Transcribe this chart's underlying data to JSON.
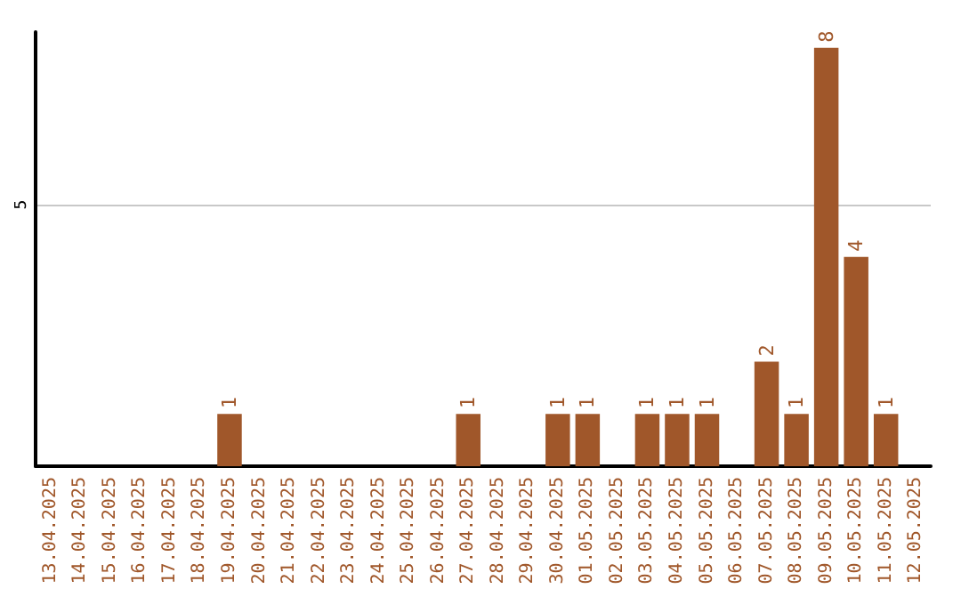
{
  "chart_data": {
    "type": "bar",
    "categories": [
      "13.04.2025",
      "14.04.2025",
      "15.04.2025",
      "16.04.2025",
      "17.04.2025",
      "18.04.2025",
      "19.04.2025",
      "20.04.2025",
      "21.04.2025",
      "22.04.2025",
      "23.04.2025",
      "24.04.2025",
      "25.04.2025",
      "26.04.2025",
      "27.04.2025",
      "28.04.2025",
      "29.04.2025",
      "30.04.2025",
      "01.05.2025",
      "02.05.2025",
      "03.05.2025",
      "04.05.2025",
      "05.05.2025",
      "06.05.2025",
      "07.05.2025",
      "08.05.2025",
      "09.05.2025",
      "10.05.2025",
      "11.05.2025",
      "12.05.2025"
    ],
    "values": [
      0,
      0,
      0,
      0,
      0,
      0,
      1,
      0,
      0,
      0,
      0,
      0,
      0,
      0,
      1,
      0,
      0,
      1,
      1,
      0,
      1,
      1,
      1,
      0,
      2,
      1,
      8,
      4,
      1,
      0
    ],
    "value_labels": [
      null,
      null,
      null,
      null,
      null,
      null,
      "1",
      null,
      null,
      null,
      null,
      null,
      null,
      null,
      "1",
      null,
      null,
      "1",
      "1",
      null,
      "1",
      "1",
      "1",
      null,
      "2",
      "1",
      "8",
      "4",
      "1",
      null
    ],
    "color": "#a0572a",
    "ylim": [
      0,
      8.3
    ],
    "yticks": [
      5
    ],
    "grid": "y"
  }
}
